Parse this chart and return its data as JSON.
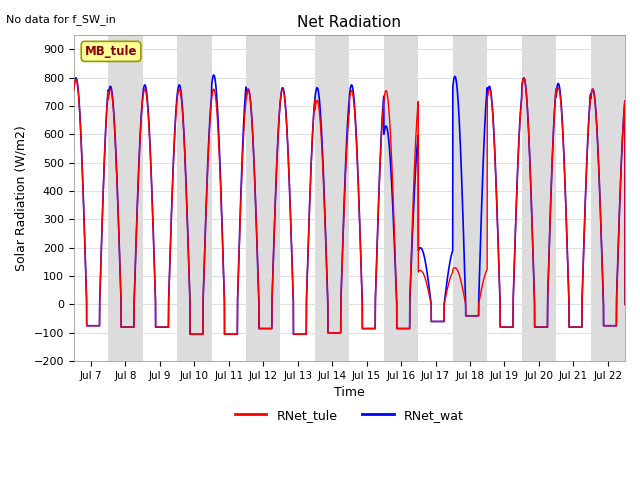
{
  "title": "Net Radiation",
  "top_left_text": "No data for f_SW_in",
  "xlabel": "Time",
  "ylabel": "Solar Radiation (W/m2)",
  "ylim": [
    -200,
    950
  ],
  "yticks": [
    -200,
    -100,
    0,
    100,
    200,
    300,
    400,
    500,
    600,
    700,
    800,
    900
  ],
  "xlim_start": 6.5,
  "xlim_end": 22.5,
  "xtick_positions": [
    7,
    8,
    9,
    10,
    11,
    12,
    13,
    14,
    15,
    16,
    17,
    18,
    19,
    20,
    21,
    22
  ],
  "xtick_labels": [
    "Jul 7",
    "Jul 8",
    "Jul 9",
    "Jul 10",
    "Jul 11",
    "Jul 12",
    "Jul 13",
    "Jul 14",
    "Jul 15",
    "Jul 16",
    "Jul 17",
    "Jul 18",
    "Jul 19",
    "Jul 20",
    "Jul 21",
    "Jul 22"
  ],
  "legend_labels": [
    "RNet_tule",
    "RNet_wat"
  ],
  "legend_colors": [
    "red",
    "blue"
  ],
  "site_label": "MB_tule",
  "site_label_color": "#8B0000",
  "site_label_bg": "#FFFF99",
  "plot_bg_color": "#FFFFFF",
  "grid_color": "#E0E0E0",
  "alt_band_color": "#DCDCDC",
  "line_color_tule": "red",
  "line_color_wat": "blue",
  "day_peaks_tule": [
    795,
    760,
    760,
    760,
    760,
    760,
    760,
    720,
    755,
    755,
    120,
    130,
    760,
    800,
    765,
    760
  ],
  "day_peaks_wat": [
    800,
    770,
    775,
    775,
    810,
    760,
    765,
    765,
    775,
    630,
    200,
    805,
    770,
    800,
    780,
    760
  ],
  "night_vals_tule": [
    -75,
    -80,
    -80,
    -105,
    -105,
    -85,
    -105,
    -100,
    -85,
    -85,
    -60,
    -40,
    -80,
    -80,
    -80,
    -75
  ],
  "night_vals_wat": [
    -75,
    -80,
    -80,
    -105,
    -105,
    -85,
    -105,
    -100,
    -85,
    -85,
    -60,
    -40,
    -80,
    -80,
    -80,
    -75
  ],
  "sunrise": 0.25,
  "sunset": 0.875,
  "n_points_per_day": 288,
  "start_day": 7,
  "end_day": 22
}
